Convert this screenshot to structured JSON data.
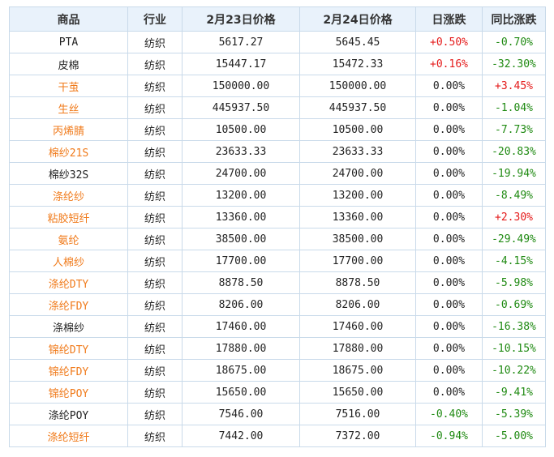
{
  "colors": {
    "header_bg": "#e9f2fb",
    "border": "#c9daea",
    "up": "#e41a1a",
    "down": "#1f8a12",
    "link": "#f07a1a",
    "text": "#222222"
  },
  "table": {
    "headers": [
      "商品",
      "行业",
      "2月23日价格",
      "2月24日价格",
      "日涨跌",
      "同比涨跌"
    ],
    "rows": [
      {
        "name": "PTA",
        "name_style": "plain",
        "industry": "纺织",
        "price1": "5617.27",
        "price2": "5645.45",
        "daily": "+0.50%",
        "daily_dir": "up",
        "yoy": "-0.70%",
        "yoy_dir": "down"
      },
      {
        "name": "皮棉",
        "name_style": "plain",
        "industry": "纺织",
        "price1": "15447.17",
        "price2": "15472.33",
        "daily": "+0.16%",
        "daily_dir": "up",
        "yoy": "-32.30%",
        "yoy_dir": "down"
      },
      {
        "name": "干茧",
        "name_style": "link",
        "industry": "纺织",
        "price1": "150000.00",
        "price2": "150000.00",
        "daily": "0.00%",
        "daily_dir": "flat",
        "yoy": "+3.45%",
        "yoy_dir": "up"
      },
      {
        "name": "生丝",
        "name_style": "link",
        "industry": "纺织",
        "price1": "445937.50",
        "price2": "445937.50",
        "daily": "0.00%",
        "daily_dir": "flat",
        "yoy": "-1.04%",
        "yoy_dir": "down"
      },
      {
        "name": "丙烯腈",
        "name_style": "link",
        "industry": "纺织",
        "price1": "10500.00",
        "price2": "10500.00",
        "daily": "0.00%",
        "daily_dir": "flat",
        "yoy": "-7.73%",
        "yoy_dir": "down"
      },
      {
        "name": "棉纱21S",
        "name_style": "link",
        "industry": "纺织",
        "price1": "23633.33",
        "price2": "23633.33",
        "daily": "0.00%",
        "daily_dir": "flat",
        "yoy": "-20.83%",
        "yoy_dir": "down"
      },
      {
        "name": "棉纱32S",
        "name_style": "plain",
        "industry": "纺织",
        "price1": "24700.00",
        "price2": "24700.00",
        "daily": "0.00%",
        "daily_dir": "flat",
        "yoy": "-19.94%",
        "yoy_dir": "down"
      },
      {
        "name": "涤纶纱",
        "name_style": "link",
        "industry": "纺织",
        "price1": "13200.00",
        "price2": "13200.00",
        "daily": "0.00%",
        "daily_dir": "flat",
        "yoy": "-8.49%",
        "yoy_dir": "down"
      },
      {
        "name": "粘胶短纤",
        "name_style": "link",
        "industry": "纺织",
        "price1": "13360.00",
        "price2": "13360.00",
        "daily": "0.00%",
        "daily_dir": "flat",
        "yoy": "+2.30%",
        "yoy_dir": "up"
      },
      {
        "name": "氨纶",
        "name_style": "link",
        "industry": "纺织",
        "price1": "38500.00",
        "price2": "38500.00",
        "daily": "0.00%",
        "daily_dir": "flat",
        "yoy": "-29.49%",
        "yoy_dir": "down"
      },
      {
        "name": "人棉纱",
        "name_style": "link",
        "industry": "纺织",
        "price1": "17700.00",
        "price2": "17700.00",
        "daily": "0.00%",
        "daily_dir": "flat",
        "yoy": "-4.15%",
        "yoy_dir": "down"
      },
      {
        "name": "涤纶DTY",
        "name_style": "link",
        "industry": "纺织",
        "price1": "8878.50",
        "price2": "8878.50",
        "daily": "0.00%",
        "daily_dir": "flat",
        "yoy": "-5.98%",
        "yoy_dir": "down"
      },
      {
        "name": "涤纶FDY",
        "name_style": "link",
        "industry": "纺织",
        "price1": "8206.00",
        "price2": "8206.00",
        "daily": "0.00%",
        "daily_dir": "flat",
        "yoy": "-0.69%",
        "yoy_dir": "down"
      },
      {
        "name": "涤棉纱",
        "name_style": "plain",
        "industry": "纺织",
        "price1": "17460.00",
        "price2": "17460.00",
        "daily": "0.00%",
        "daily_dir": "flat",
        "yoy": "-16.38%",
        "yoy_dir": "down"
      },
      {
        "name": "锦纶DTY",
        "name_style": "link",
        "industry": "纺织",
        "price1": "17880.00",
        "price2": "17880.00",
        "daily": "0.00%",
        "daily_dir": "flat",
        "yoy": "-10.15%",
        "yoy_dir": "down"
      },
      {
        "name": "锦纶FDY",
        "name_style": "link",
        "industry": "纺织",
        "price1": "18675.00",
        "price2": "18675.00",
        "daily": "0.00%",
        "daily_dir": "flat",
        "yoy": "-10.22%",
        "yoy_dir": "down"
      },
      {
        "name": "锦纶POY",
        "name_style": "link",
        "industry": "纺织",
        "price1": "15650.00",
        "price2": "15650.00",
        "daily": "0.00%",
        "daily_dir": "flat",
        "yoy": "-9.41%",
        "yoy_dir": "down"
      },
      {
        "name": "涤纶POY",
        "name_style": "plain",
        "industry": "纺织",
        "price1": "7546.00",
        "price2": "7516.00",
        "daily": "-0.40%",
        "daily_dir": "down",
        "yoy": "-5.39%",
        "yoy_dir": "down"
      },
      {
        "name": "涤纶短纤",
        "name_style": "link",
        "industry": "纺织",
        "price1": "7442.00",
        "price2": "7372.00",
        "daily": "-0.94%",
        "daily_dir": "down",
        "yoy": "-5.00%",
        "yoy_dir": "down"
      }
    ]
  }
}
